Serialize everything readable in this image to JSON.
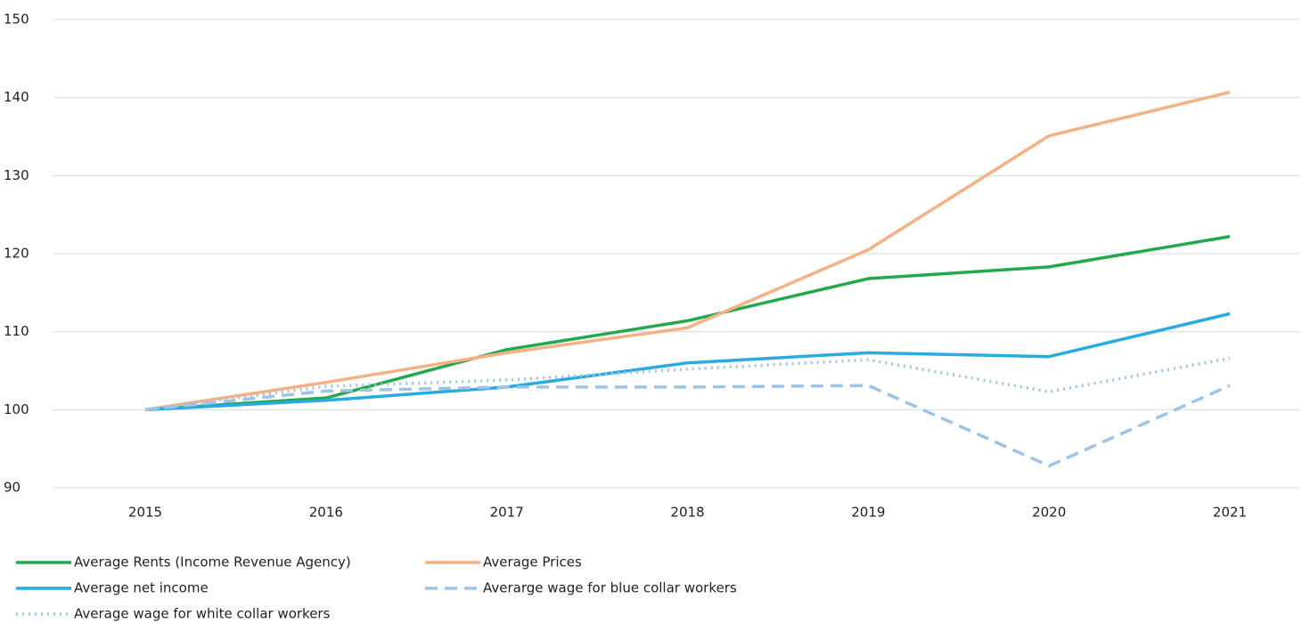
{
  "chart_data": {
    "type": "line",
    "categories": [
      "2015",
      "2016",
      "2017",
      "2018",
      "2019",
      "2020",
      "2021"
    ],
    "series": [
      {
        "name": "Average Rents (Income Revenue Agency)",
        "color": "#23a84b",
        "dash": "solid",
        "values": [
          100,
          101.5,
          107.7,
          111.4,
          116.8,
          118.3,
          122.2
        ]
      },
      {
        "name": "Average Prices",
        "color": "#f4b183",
        "dash": "solid",
        "values": [
          100,
          103.5,
          107.3,
          110.5,
          120.5,
          135.1,
          140.7
        ]
      },
      {
        "name": "Average net income",
        "color": "#29abe2",
        "dash": "solid",
        "values": [
          100,
          101.2,
          102.9,
          106.0,
          107.3,
          106.8,
          112.3
        ]
      },
      {
        "name": "Averarge wage for blue collar workers",
        "color": "#9dc3e6",
        "dash": "dashed",
        "values": [
          100,
          102.4,
          102.9,
          102.9,
          103.1,
          92.8,
          103.1
        ]
      },
      {
        "name": "Average wage for white collar workers",
        "color": "#9dc3e6",
        "dash": "dotted",
        "values": [
          100,
          103.0,
          103.8,
          105.2,
          106.4,
          102.3,
          106.6
        ]
      }
    ],
    "ylim": [
      90,
      150
    ],
    "yticks": [
      90,
      100,
      110,
      120,
      130,
      140,
      150
    ],
    "grid": true
  }
}
